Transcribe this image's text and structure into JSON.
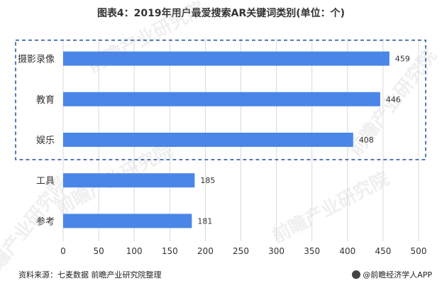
{
  "title": "图表4：2019年用户最爱搜索AR关键词类别(单位：个)",
  "source": "资料来源：七麦数据 前瞻产业研究院整理",
  "credit": "@前瞻经济学人APP",
  "watermark": "前瞻产业研究院",
  "colors": {
    "bar": "#4A86E8",
    "highlight_box": "#1F4E9A"
  },
  "chart_data": {
    "type": "bar",
    "orientation": "horizontal",
    "categories": [
      "摄影录像",
      "教育",
      "娱乐",
      "工具",
      "参考"
    ],
    "values": [
      459,
      446,
      408,
      185,
      181
    ],
    "xlim": [
      0,
      500
    ],
    "xticks": [
      0,
      50,
      100,
      150,
      200,
      250,
      300,
      350,
      400,
      450,
      500
    ],
    "grid": true,
    "highlighted_categories": [
      "摄影录像",
      "教育",
      "娱乐"
    ]
  }
}
